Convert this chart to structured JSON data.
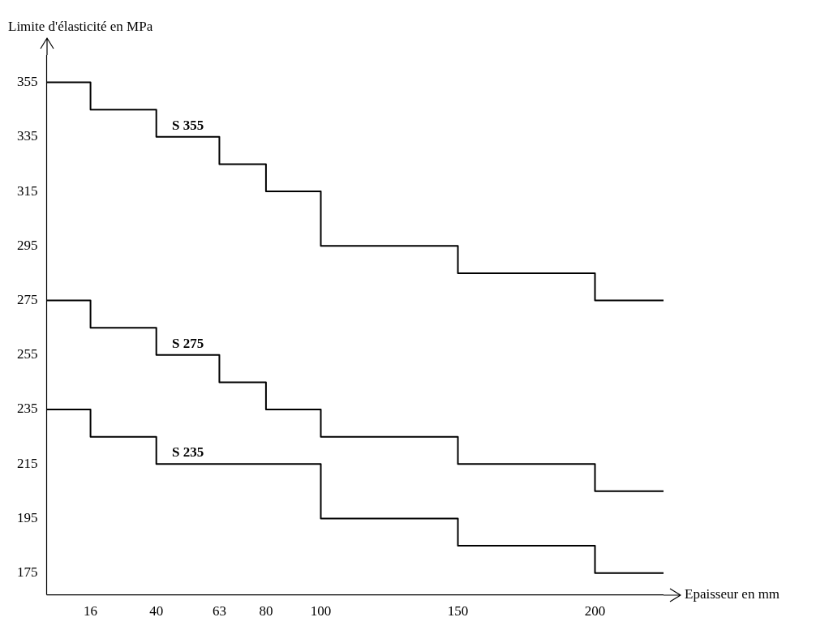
{
  "chart_data": {
    "type": "step",
    "xlabel": "Epaisseur en mm",
    "ylabel": "Limite d'élasticité en MPa",
    "x": [
      0,
      16,
      40,
      63,
      80,
      100,
      150,
      200,
      225
    ],
    "series": [
      {
        "name": "S 355",
        "color": "#000000",
        "values": [
          355,
          345,
          335,
          325,
          315,
          295,
          285,
          275,
          275
        ]
      },
      {
        "name": "S 275",
        "color": "#000000",
        "values": [
          275,
          265,
          255,
          245,
          235,
          225,
          215,
          205,
          205
        ]
      },
      {
        "name": "S 235",
        "color": "#000000",
        "values": [
          235,
          225,
          215,
          215,
          215,
          195,
          185,
          175,
          175
        ]
      }
    ],
    "xlim": [
      0,
      225
    ],
    "xticks": [
      16,
      40,
      63,
      80,
      100,
      150,
      200
    ],
    "ylim": [
      167,
      365
    ],
    "yticks": [
      175,
      195,
      215,
      235,
      255,
      275,
      295,
      315,
      335,
      355
    ],
    "grid": false,
    "legend": false,
    "marker": "none",
    "line_style": "solid"
  }
}
